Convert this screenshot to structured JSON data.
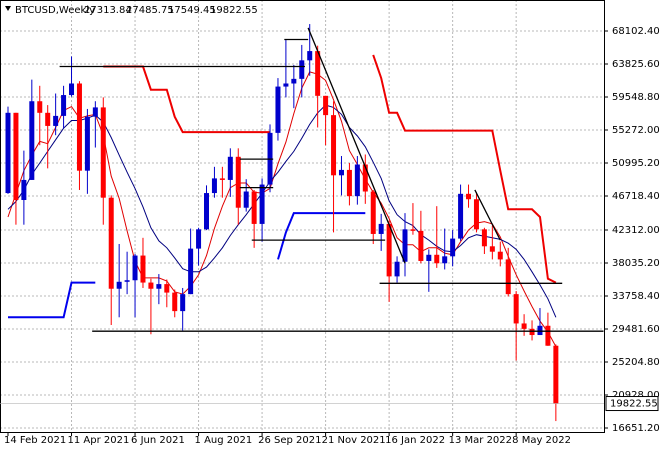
{
  "chart_data": {
    "type": "candlestick",
    "title": "BTCUSD,Weekly",
    "categories": [
      "14 Feb 2021",
      null,
      null,
      null,
      null,
      null,
      null,
      null,
      "11 Apr 2021",
      null,
      null,
      null,
      null,
      null,
      null,
      null,
      "6 Jun 2021",
      null,
      null,
      null,
      null,
      null,
      null,
      null,
      "1 Aug 2021",
      null,
      null,
      null,
      null,
      null,
      null,
      null,
      "26 Sep 2021",
      null,
      null,
      null,
      null,
      null,
      null,
      null,
      "21 Nov 2021",
      null,
      null,
      null,
      null,
      null,
      null,
      null,
      "16 Jan 2022",
      null,
      null,
      null,
      null,
      null,
      null,
      null,
      "13 Mar 2022",
      null,
      null,
      null,
      null,
      null,
      null,
      null,
      "8 May 2022",
      null,
      null,
      null,
      null,
      null
    ],
    "open": [
      47100,
      57500,
      46200,
      48800,
      59000,
      57500,
      55800,
      57100,
      59800,
      61300,
      50000,
      57000,
      58200,
      46500,
      34700,
      35600,
      35800,
      39000,
      35500,
      34700,
      35300,
      34200,
      31800,
      34000,
      39900,
      42400,
      47100,
      49000,
      48800,
      51800,
      45200,
      47300,
      43100,
      48200,
      54900,
      60900,
      61300,
      61900,
      64300,
      65500,
      59700,
      57200,
      49400,
      50100,
      46700,
      50800,
      47300,
      41800,
      43100,
      36300,
      38200,
      42400,
      42200,
      38300,
      39100,
      38000,
      38900,
      41200,
      47000,
      46300,
      42400,
      40200,
      39500,
      38500,
      34000,
      30200,
      29500,
      28700,
      29900,
      27313.84
    ],
    "high": [
      58300,
      57500,
      52600,
      61800,
      61000,
      58500,
      60000,
      61000,
      64800,
      61600,
      58000,
      59000,
      59500,
      46800,
      40500,
      39500,
      39200,
      41300,
      36000,
      36600,
      35900,
      34600,
      34800,
      42500,
      42600,
      48100,
      50500,
      50500,
      52900,
      52900,
      48900,
      47500,
      49000,
      56000,
      62000,
      67000,
      63700,
      66300,
      69000,
      66200,
      59700,
      59000,
      51900,
      51000,
      51900,
      52100,
      47500,
      44400,
      43500,
      38900,
      44500,
      45800,
      44800,
      39800,
      45400,
      42500,
      42300,
      48200,
      48200,
      47200,
      42600,
      42900,
      40800,
      40000,
      34400,
      31400,
      30600,
      32200,
      31600,
      27485.75
    ],
    "low": [
      47000,
      43000,
      43000,
      48800,
      53300,
      50300,
      54600,
      55500,
      59600,
      47500,
      47000,
      53000,
      43000,
      30000,
      31000,
      34000,
      31000,
      34800,
      28800,
      32700,
      32300,
      31000,
      29300,
      34000,
      37700,
      42300,
      46500,
      46500,
      46600,
      43000,
      44700,
      40000,
      40800,
      47200,
      53900,
      59500,
      58100,
      59500,
      62300,
      55600,
      53300,
      42000,
      46800,
      45500,
      45600,
      45700,
      40500,
      39600,
      33000,
      35500,
      36300,
      41700,
      38000,
      34300,
      37400,
      37200,
      37600,
      40900,
      45200,
      42000,
      39200,
      38500,
      37600,
      33700,
      25400,
      28600,
      28000,
      28700,
      27300,
      17549.45
    ],
    "close": [
      57500,
      46200,
      48800,
      59000,
      57500,
      55800,
      57100,
      59800,
      61300,
      50000,
      57000,
      58200,
      46500,
      34700,
      35600,
      35800,
      39000,
      35500,
      34700,
      35300,
      34200,
      31800,
      34000,
      39900,
      42400,
      47100,
      49000,
      48800,
      51800,
      45200,
      47300,
      43100,
      48200,
      54900,
      60900,
      61300,
      61900,
      64300,
      65500,
      59700,
      57200,
      49400,
      50100,
      46700,
      50800,
      47300,
      41800,
      43100,
      36300,
      38200,
      42400,
      42200,
      38300,
      39100,
      38000,
      38900,
      41200,
      47000,
      46300,
      42400,
      40200,
      39500,
      38500,
      34000,
      30200,
      29500,
      28700,
      29900,
      27313.84,
      19822.55
    ],
    "up_color": "#0000cc",
    "down_color": "#ff0000",
    "overlays": [
      {
        "color": "#e00000",
        "width": 1,
        "values": [
          44000,
          47000,
          50000,
          52000,
          53800,
          53500,
          55600,
          57800,
          58300,
          56800,
          57100,
          57300,
          54600,
          49300,
          46400,
          42200,
          38300,
          36100,
          36100,
          36100,
          35700,
          34300,
          34000,
          35000,
          36500,
          39000,
          42500,
          45400,
          47800,
          48400,
          48400,
          47200,
          47100,
          47700,
          50900,
          53700,
          57400,
          60700,
          62800,
          62500,
          61700,
          59200,
          56400,
          52600,
          50800,
          48900,
          47200,
          45800,
          43800,
          41300,
          40400,
          40400,
          39500,
          40000,
          40000,
          39300,
          39100,
          40800,
          42300,
          43200,
          43400,
          43100,
          41400,
          38900,
          36500,
          34400,
          32400,
          30500,
          29100,
          27200
        ]
      },
      {
        "color": "#000080",
        "width": 1,
        "values": [
          45000,
          46000,
          47500,
          49500,
          51000,
          52500,
          54000,
          55500,
          56500,
          56500,
          56800,
          57200,
          56300,
          54300,
          52000,
          49800,
          47700,
          45300,
          42600,
          40900,
          40000,
          38700,
          37300,
          36900,
          36900,
          37500,
          38700,
          40000,
          41600,
          43000,
          44300,
          45700,
          47100,
          48600,
          49800,
          51200,
          52500,
          54200,
          56000,
          57500,
          58500,
          58200,
          57300,
          55600,
          54500,
          53100,
          51100,
          49000,
          46100,
          44300,
          43400,
          42900,
          41700,
          41000,
          40200,
          39600,
          39500,
          40300,
          41300,
          41700,
          41500,
          41300,
          41100,
          40600,
          39800,
          38500,
          36900,
          35200,
          33400,
          31000
        ]
      },
      {
        "color": "#ee0000",
        "width": 2,
        "values": [
          null,
          null,
          null,
          null,
          null,
          null,
          null,
          null,
          null,
          null,
          null,
          null,
          63500,
          63500,
          63500,
          63500,
          63500,
          63500,
          60500,
          60500,
          60500,
          57000,
          55000,
          55000,
          55000,
          55000,
          55000,
          55000,
          55000,
          55000,
          55000,
          55000,
          55000,
          55000,
          null,
          null,
          null,
          null,
          null,
          null,
          null,
          null,
          null,
          null,
          null,
          null,
          65000,
          62000,
          57500,
          57500,
          55200,
          55200,
          55200,
          55200,
          55200,
          55200,
          55200,
          55200,
          55200,
          55200,
          55200,
          55200,
          50000,
          45000,
          45000,
          45000,
          45000,
          44000,
          36000,
          35500
        ]
      },
      {
        "color": "#0000ee",
        "width": 2,
        "values": [
          31000,
          31000,
          31000,
          31000,
          31000,
          31000,
          31000,
          31000,
          35500,
          35500,
          35500,
          35500,
          null,
          null,
          null,
          null,
          null,
          null,
          null,
          null,
          null,
          null,
          null,
          null,
          null,
          null,
          null,
          null,
          null,
          null,
          null,
          null,
          null,
          null,
          38500,
          42000,
          44500,
          44500,
          44500,
          44500,
          44500,
          44500,
          44500,
          44500,
          44500,
          44500,
          null,
          null,
          null,
          null,
          null,
          null,
          null,
          null,
          null,
          null,
          null,
          null,
          null,
          null,
          null,
          null,
          null,
          null,
          null,
          null,
          null,
          null,
          null,
          null
        ]
      }
    ],
    "lines": [
      {
        "x": [
          6.5,
          37.4
        ],
        "y": [
          63500,
          63500
        ]
      },
      {
        "x": [
          10.6,
          75
        ],
        "y": [
          29200,
          29200
        ]
      },
      {
        "x": [
          30.7,
          47.5
        ],
        "y": [
          41000,
          41000
        ]
      },
      {
        "x": [
          46.8,
          69.8
        ],
        "y": [
          35400,
          35400
        ]
      },
      {
        "x": [
          34.8,
          37.8
        ],
        "y": [
          67000,
          67000
        ]
      },
      {
        "x": [
          37.8,
          50
        ],
        "y": [
          68500,
          38000
        ]
      },
      {
        "x": [
          58.8,
          62
        ],
        "y": [
          47500,
          41000
        ]
      },
      {
        "x": [
          29.2,
          33.4
        ],
        "y": [
          51500,
          51500
        ]
      },
      {
        "x": [
          29.2,
          33.4
        ],
        "y": [
          47800,
          47800
        ]
      }
    ],
    "ylim": [
      15873.6,
      71601.6
    ],
    "yticks": [
      {
        "value": 68102.4,
        "label": "68102.40"
      },
      {
        "value": 63825.6,
        "label": "63825.60"
      },
      {
        "value": 59548.8,
        "label": "59548.80"
      },
      {
        "value": 55272,
        "label": "55272.00"
      },
      {
        "value": 50995.2,
        "label": "50995.20"
      },
      {
        "value": 46718.4,
        "label": "46718.40"
      },
      {
        "value": 42312,
        "label": "42312.00"
      },
      {
        "value": 38035.2,
        "label": "38035.20"
      },
      {
        "value": 33758.4,
        "label": "33758.40"
      },
      {
        "value": 29481.6,
        "label": "29481.60"
      },
      {
        "value": 25204.8,
        "label": "25204.80"
      },
      {
        "value": 20928,
        "label": "20928.00"
      },
      {
        "value": 16651.2,
        "label": "16651.20"
      }
    ],
    "grid": true
  }
}
